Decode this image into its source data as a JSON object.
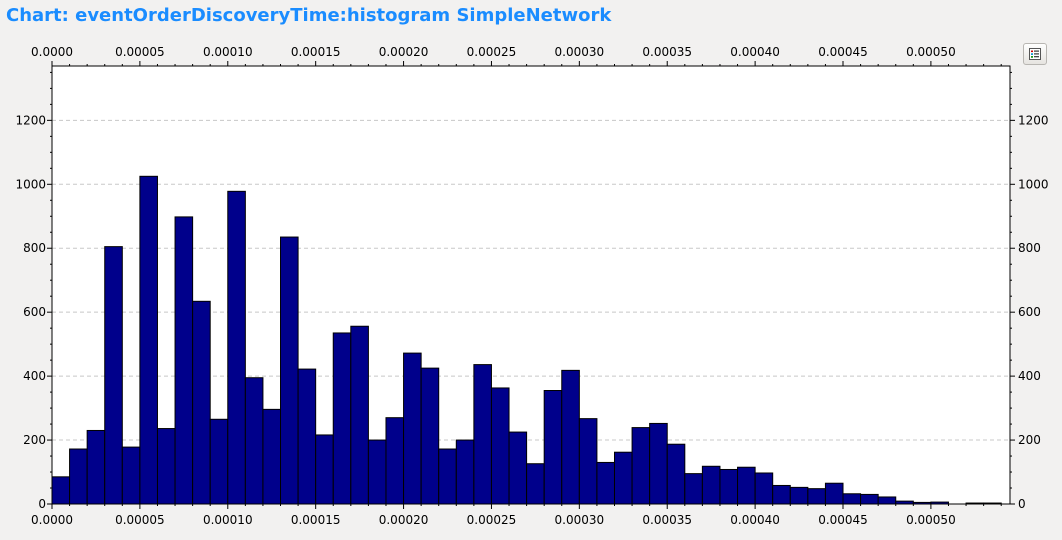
{
  "title": "Chart: eventOrderDiscoveryTime:histogram SimpleNetwork",
  "legend_button": {
    "icon": "legend-list-icon"
  },
  "colors": {
    "bar_fill": "#00008b",
    "bar_stroke": "#000000",
    "title": "#1a8cff",
    "grid": "#c8c8c8"
  },
  "chart_data": {
    "type": "bar",
    "title": "eventOrderDiscoveryTime:histogram SimpleNetwork",
    "bin_width": 1e-05,
    "x_start": 0.0,
    "xlim": [
      0.0,
      0.000545
    ],
    "ylim": [
      0,
      1370
    ],
    "x_ticks": [
      "0.0000",
      "0.00005",
      "0.00010",
      "0.00015",
      "0.00020",
      "0.00025",
      "0.00030",
      "0.00035",
      "0.00040",
      "0.00045",
      "0.00050"
    ],
    "y_ticks": [
      "0",
      "200",
      "400",
      "600",
      "800",
      "1000",
      "1200"
    ],
    "grid": true,
    "values": [
      85,
      172,
      230,
      805,
      178,
      1025,
      236,
      898,
      634,
      265,
      978,
      395,
      296,
      835,
      422,
      216,
      535,
      556,
      200,
      270,
      472,
      425,
      172,
      200,
      436,
      363,
      225,
      126,
      355,
      418,
      267,
      130,
      162,
      239,
      252,
      187,
      95,
      118,
      108,
      115,
      97,
      58,
      52,
      48,
      65,
      32,
      30,
      22,
      9,
      5,
      6,
      0,
      3,
      3
    ]
  }
}
